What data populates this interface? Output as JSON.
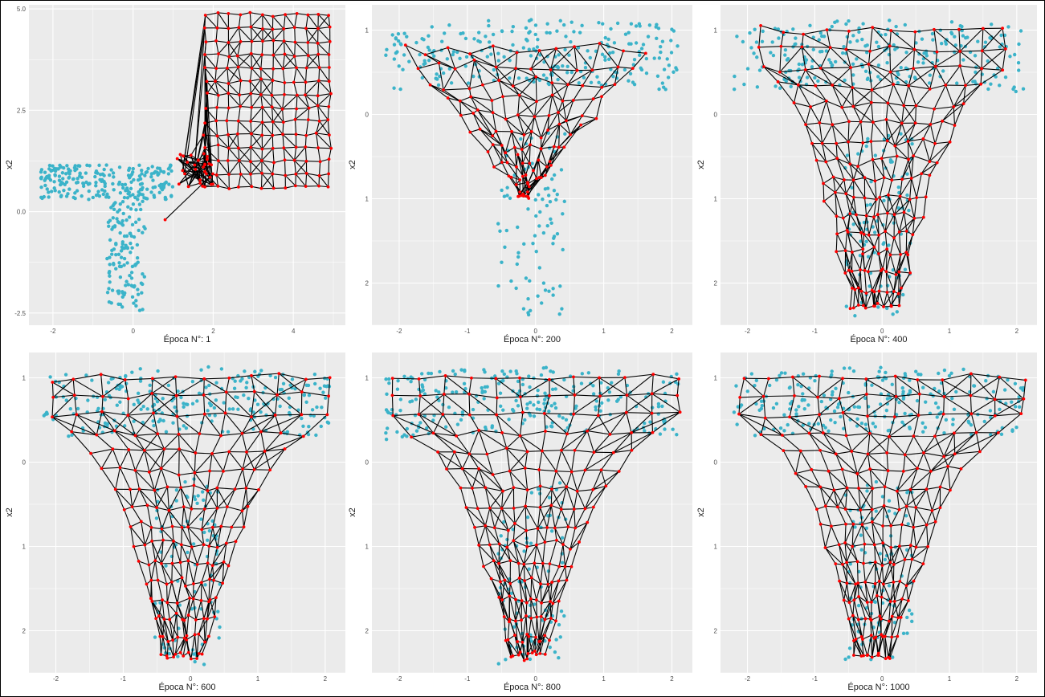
{
  "chart_data": [
    {
      "type": "scatter",
      "xlabel": "Época N°: 1",
      "ylabel": "x2",
      "xticks": [
        -2,
        0,
        2,
        4
      ],
      "yticks": [
        -2.5,
        0.0,
        2.5,
        5.0
      ],
      "ytick_labels": [
        "-2.5",
        "0.0",
        "2.5",
        "5.0"
      ],
      "xlim": [
        -2.6,
        5.3
      ],
      "ylim": [
        -2.8,
        5.1
      ],
      "colors": {
        "data": "#3bb3c9",
        "neurons": "#ff0000",
        "edges": "#000000",
        "panel_bg": "#ebebeb",
        "grid": "#ffffff"
      },
      "data_shape": "L",
      "neuron_grid_region": {
        "x": [
          1.0,
          4.9
        ],
        "y": [
          0.6,
          4.85
        ]
      }
    },
    {
      "type": "scatter",
      "xlabel": "Época N°: 200",
      "ylabel": "x2",
      "xticks": [
        -2,
        -1,
        0,
        1,
        2
      ],
      "yticks": [
        -2,
        -1,
        0,
        1
      ],
      "ytick_labels": [
        "2",
        "1",
        "0",
        "1"
      ],
      "xlim": [
        -2.4,
        2.3
      ],
      "ylim": [
        -2.5,
        1.3
      ],
      "colors": {
        "data": "#3bb3c9",
        "neurons": "#ff0000",
        "edges": "#000000",
        "panel_bg": "#ebebeb",
        "grid": "#ffffff"
      },
      "data_shape": "T",
      "neuron_shape": "triangle"
    },
    {
      "type": "scatter",
      "xlabel": "Época N°: 400",
      "ylabel": "x2",
      "xticks": [
        -2,
        -1,
        0,
        1,
        2
      ],
      "yticks": [
        -2,
        -1,
        0,
        1
      ],
      "ytick_labels": [
        "2",
        "1",
        "0",
        "1"
      ],
      "xlim": [
        -2.4,
        2.3
      ],
      "ylim": [
        -2.5,
        1.3
      ],
      "colors": {
        "data": "#3bb3c9",
        "neurons": "#ff0000",
        "edges": "#000000",
        "panel_bg": "#ebebeb",
        "grid": "#ffffff"
      },
      "data_shape": "T",
      "neuron_shape": "T"
    },
    {
      "type": "scatter",
      "xlabel": "Época N°: 600",
      "ylabel": "x2",
      "xticks": [
        -2,
        -1,
        0,
        1,
        2
      ],
      "yticks": [
        -2,
        -1,
        0,
        1
      ],
      "ytick_labels": [
        "2",
        "1",
        "0",
        "1"
      ],
      "xlim": [
        -2.4,
        2.3
      ],
      "ylim": [
        -2.5,
        1.3
      ],
      "colors": {
        "data": "#3bb3c9",
        "neurons": "#ff0000",
        "edges": "#000000",
        "panel_bg": "#ebebeb",
        "grid": "#ffffff"
      },
      "data_shape": "T",
      "neuron_shape": "T"
    },
    {
      "type": "scatter",
      "xlabel": "Época N°: 800",
      "ylabel": "x2",
      "xticks": [
        -2,
        -1,
        0,
        1,
        2
      ],
      "yticks": [
        -2,
        -1,
        0,
        1
      ],
      "ytick_labels": [
        "2",
        "1",
        "0",
        "1"
      ],
      "xlim": [
        -2.4,
        2.3
      ],
      "ylim": [
        -2.5,
        1.3
      ],
      "colors": {
        "data": "#3bb3c9",
        "neurons": "#ff0000",
        "edges": "#000000",
        "panel_bg": "#ebebeb",
        "grid": "#ffffff"
      },
      "data_shape": "T",
      "neuron_shape": "T"
    },
    {
      "type": "scatter",
      "xlabel": "Época N°: 1000",
      "ylabel": "x2",
      "xticks": [
        -2,
        -1,
        0,
        1,
        2
      ],
      "yticks": [
        -2,
        -1,
        0,
        1
      ],
      "ytick_labels": [
        "2",
        "1",
        "0",
        "1"
      ],
      "xlim": [
        -2.4,
        2.3
      ],
      "ylim": [
        -2.5,
        1.3
      ],
      "colors": {
        "data": "#3bb3c9",
        "neurons": "#ff0000",
        "edges": "#000000",
        "panel_bg": "#ebebeb",
        "grid": "#ffffff"
      },
      "data_shape": "T",
      "neuron_shape": "T"
    }
  ]
}
